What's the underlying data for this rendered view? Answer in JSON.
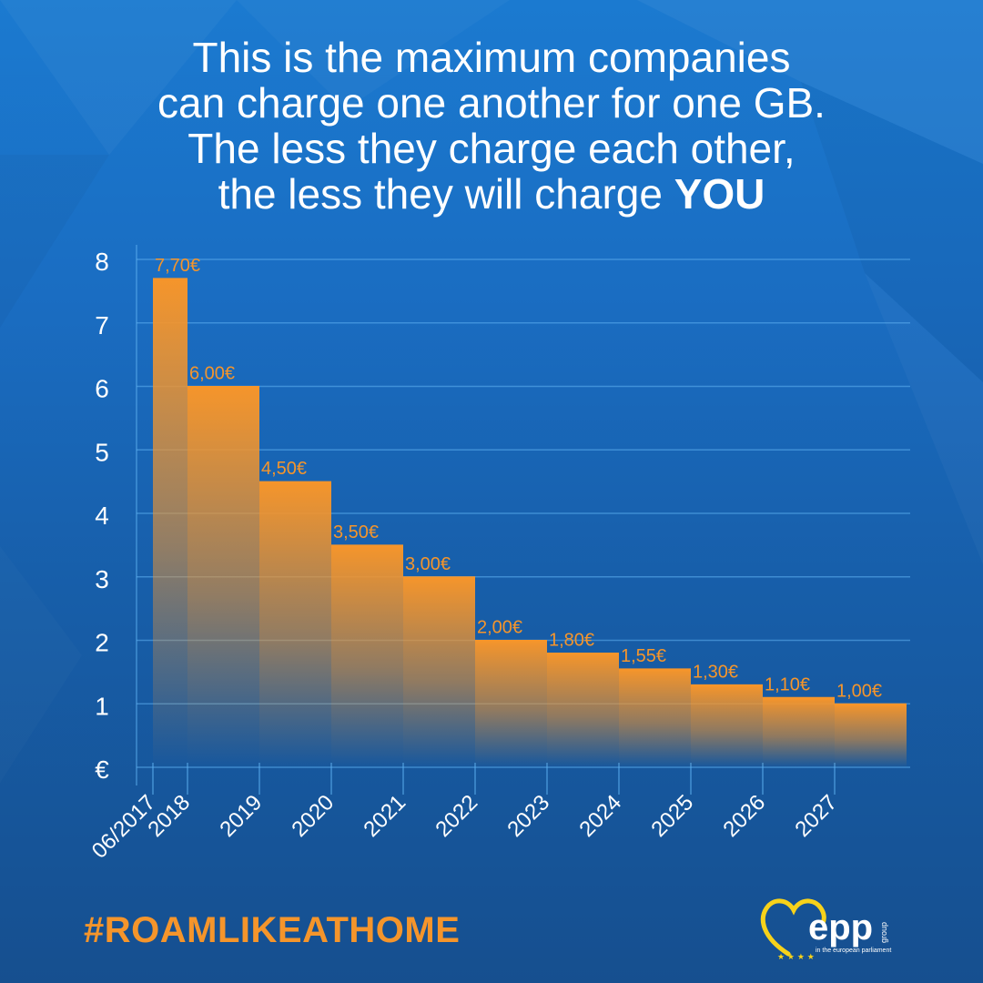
{
  "headline": {
    "line1": "This is the maximum companies",
    "line2": "can charge one another for one GB.",
    "line3": "The less they charge each other,",
    "line4_prefix": "the less they will charge ",
    "line4_emphasis": "YOU"
  },
  "chart_data": {
    "type": "bar",
    "title": "",
    "xlabel": "",
    "ylabel": "€",
    "ylim": [
      0,
      8
    ],
    "yticks": [
      "€",
      "1",
      "2",
      "3",
      "4",
      "5",
      "6",
      "7",
      "8"
    ],
    "x_tick_labels": [
      "06/2017",
      "2018",
      "2019",
      "2020",
      "2021",
      "2022",
      "2023",
      "2024",
      "2025",
      "2026",
      "2027"
    ],
    "series": [
      {
        "periods": [
          "06/2017",
          "2018",
          "2019",
          "2020",
          "2021",
          "2022",
          "2023",
          "2024",
          "2025",
          "2026",
          "2027"
        ],
        "values": [
          7.7,
          6.0,
          4.5,
          3.5,
          3.0,
          2.0,
          1.8,
          1.55,
          1.3,
          1.1,
          1.0
        ],
        "data_labels": [
          "7,70€",
          "6,00€",
          "4,50€",
          "3,50€",
          "3,00€",
          "2,00€",
          "1,80€",
          "1,55€",
          "1,30€",
          "1,10€",
          "1,00€"
        ]
      }
    ],
    "grid": true,
    "legend": "none",
    "bar_color": "#f5952b"
  },
  "hashtag": "#ROAMLIKEATHOME",
  "logo": {
    "wordmark": "epp",
    "side_text": "group",
    "subtitle": "in the european parliament"
  },
  "colors": {
    "accent_orange": "#f5952b",
    "logo_yellow": "#f7d21a",
    "background_blue": "#1a6dc2"
  }
}
